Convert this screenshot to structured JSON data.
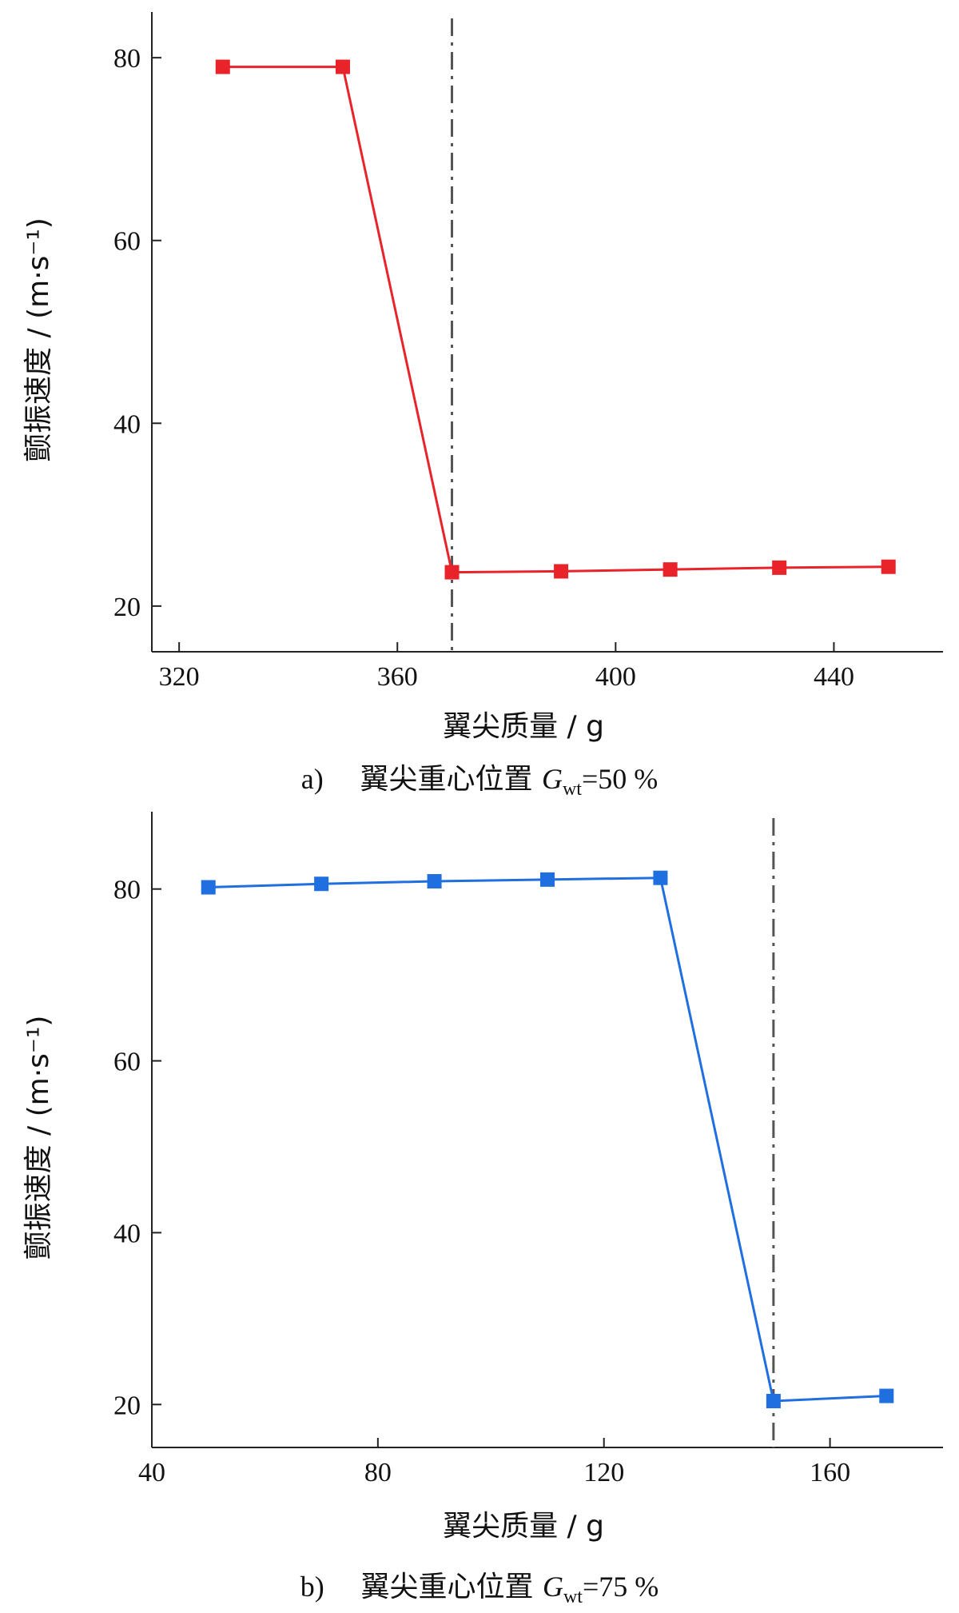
{
  "chart_data": [
    {
      "id": "a",
      "type": "line",
      "xlabel": "翼尖质量 / g",
      "ylabel": "颤振速度 / (m·s⁻¹)",
      "x_ticks": [
        320,
        360,
        400,
        440
      ],
      "y_ticks": [
        20,
        40,
        60,
        80
      ],
      "xlim": [
        315,
        460
      ],
      "ylim": [
        15,
        85
      ],
      "grid": false,
      "color": "#e8232a",
      "marker": "square",
      "vline_x": 370,
      "series": [
        {
          "x": [
            328,
            350,
            370,
            390,
            410,
            430,
            450
          ],
          "y": [
            79,
            79,
            23.7,
            23.8,
            24.0,
            24.2,
            24.3
          ]
        }
      ],
      "caption": {
        "letter": "a)",
        "text": "翼尖重心位置",
        "var": "G",
        "sub": "wt",
        "value": "=50 %"
      }
    },
    {
      "id": "b",
      "type": "line",
      "xlabel": "翼尖质量 / g",
      "ylabel": "颤振速度 / (m·s⁻¹)",
      "x_ticks": [
        40,
        80,
        120,
        160
      ],
      "y_ticks": [
        20,
        40,
        60,
        80
      ],
      "xlim": [
        40,
        180
      ],
      "ylim": [
        15,
        89
      ],
      "grid": false,
      "color": "#1f6fe0",
      "marker": "square",
      "vline_x": 150,
      "series": [
        {
          "x": [
            50,
            70,
            90,
            110,
            130,
            150,
            170
          ],
          "y": [
            80.2,
            80.6,
            80.9,
            81.1,
            81.3,
            20.4,
            21.0
          ]
        }
      ],
      "caption": {
        "letter": "b)",
        "text": "翼尖重心位置",
        "var": "G",
        "sub": "wt",
        "value": "=75 %"
      }
    }
  ]
}
